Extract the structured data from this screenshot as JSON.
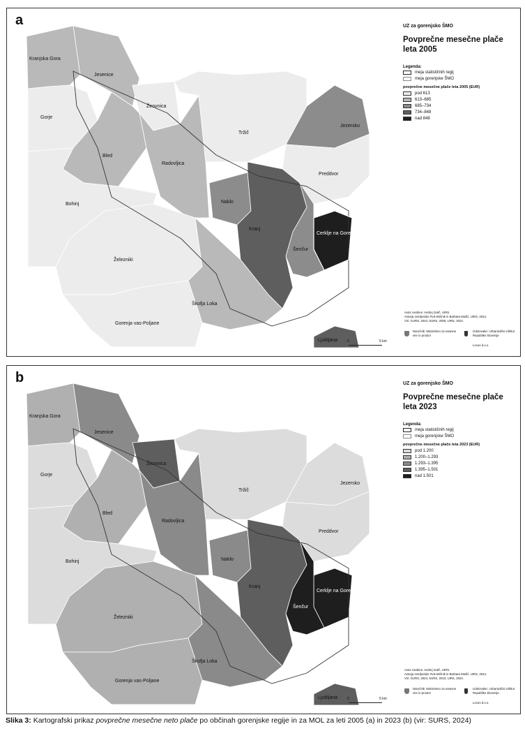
{
  "figure": {
    "caption_label": "Slika 3:",
    "caption_pre": " Kartografski prikaz ",
    "caption_italic": "povprečne mesečne neto plače",
    "caption_post": " po občinah gorenjske regije in za MOL za leti 2005 (a) in 2023 (b) (vir: SURS, 2024)"
  },
  "panels": [
    {
      "tag": "a",
      "subtitle": "UZ za gorenjsko ŠMO",
      "title": "Povprečne mesečne plače leta 2005",
      "legend_title": "Legenda:",
      "boundary_items": [
        "meja statističnih regij",
        "meja gorenjske ŠMO"
      ],
      "class_title": "povprečne mesečne plače leta 2005 (EUR)",
      "classes": [
        "pod 613",
        "613–685",
        "685–734",
        "734–848",
        "nad 848"
      ],
      "colors": [
        "#ececec",
        "#b9b9b9",
        "#8c8c8c",
        "#5e5e5e",
        "#1e1e1e"
      ],
      "credits": [
        "Avtor vsebine: Andrej Gulič, UIRS.",
        "Avtorja zemljevida: Rok Brišnik in Barbara Mušič, UIRS, 2024.",
        "Viri: GURS, 2024; SURS, 2005; UIRS, 2024."
      ],
      "logos": [
        "Naročnik: Ministrstvo za naravne vire in prostor",
        "Izdelovalec: Urbanistični inštitut Republike Slovenije",
        "Locus d.o.o."
      ],
      "scale": [
        "0",
        "5 km"
      ],
      "municipalities": [
        {
          "name": "Kranjska Gora",
          "cls": 1
        },
        {
          "name": "Jesenice",
          "cls": 1
        },
        {
          "name": "Žirovnica",
          "cls": 0
        },
        {
          "name": "Gorje",
          "cls": 0
        },
        {
          "name": "Bled",
          "cls": 1
        },
        {
          "name": "Radovljica",
          "cls": 1
        },
        {
          "name": "Tržič",
          "cls": 0
        },
        {
          "name": "Jezersko",
          "cls": 2
        },
        {
          "name": "Preddvor",
          "cls": 0
        },
        {
          "name": "Bohinj",
          "cls": 0
        },
        {
          "name": "Naklo",
          "cls": 2
        },
        {
          "name": "Kranj",
          "cls": 3
        },
        {
          "name": "Cerklje na Gorenjskem",
          "cls": 4
        },
        {
          "name": "Šenčur",
          "cls": 2
        },
        {
          "name": "Železniki",
          "cls": 0
        },
        {
          "name": "Škofja Loka",
          "cls": 1
        },
        {
          "name": "Gorenja vas-Poljane",
          "cls": 0
        },
        {
          "name": "Ljubljana",
          "cls": 3
        }
      ]
    },
    {
      "tag": "b",
      "subtitle": "UZ za gorenjsko ŠMO",
      "title": "Povprečne mesečne plače leta 2023",
      "legend_title": "Legenda:",
      "boundary_items": [
        "meja statističnih regij",
        "meja gorenjske ŠMO"
      ],
      "class_title": "povprečne mesečne plače leta 2023 (EUR)",
      "classes": [
        "pod 1.200",
        "1.200–1.293",
        "1.293–1.395",
        "1.395–1.501",
        "nad 1.501"
      ],
      "colors": [
        "#dcdcdc",
        "#b0b0b0",
        "#8a8a8a",
        "#5e5e5e",
        "#1e1e1e"
      ],
      "credits": [
        "Avtor vsebine: Andrej Gulič, UIRS.",
        "Avtorja zemljevida: Rok Brišnik in Barbara Mušič, UIRS, 2024.",
        "Viri: GURS, 2024; SURS, 2023; UIRS, 2024."
      ],
      "logos": [
        "Naročnik: Ministrstvo za naravne vire in prostor",
        "Izdelovalec: Urbanistični inštitut Republike Slovenije",
        "Locus d.o.o."
      ],
      "scale": [
        "0",
        "5 km"
      ],
      "municipalities": [
        {
          "name": "Kranjska Gora",
          "cls": 1
        },
        {
          "name": "Jesenice",
          "cls": 2
        },
        {
          "name": "Žirovnica",
          "cls": 3
        },
        {
          "name": "Gorje",
          "cls": 0
        },
        {
          "name": "Bled",
          "cls": 1
        },
        {
          "name": "Radovljica",
          "cls": 2
        },
        {
          "name": "Tržič",
          "cls": 0
        },
        {
          "name": "Jezersko",
          "cls": 0
        },
        {
          "name": "Preddvor",
          "cls": 0
        },
        {
          "name": "Bohinj",
          "cls": 0
        },
        {
          "name": "Naklo",
          "cls": 2
        },
        {
          "name": "Kranj",
          "cls": 3
        },
        {
          "name": "Cerklje na Gorenjskem",
          "cls": 4
        },
        {
          "name": "Šenčur",
          "cls": 4
        },
        {
          "name": "Železniki",
          "cls": 1
        },
        {
          "name": "Škofja Loka",
          "cls": 2
        },
        {
          "name": "Gorenja vas-Poljane",
          "cls": 1
        },
        {
          "name": "Ljubljana",
          "cls": 3
        }
      ]
    }
  ]
}
